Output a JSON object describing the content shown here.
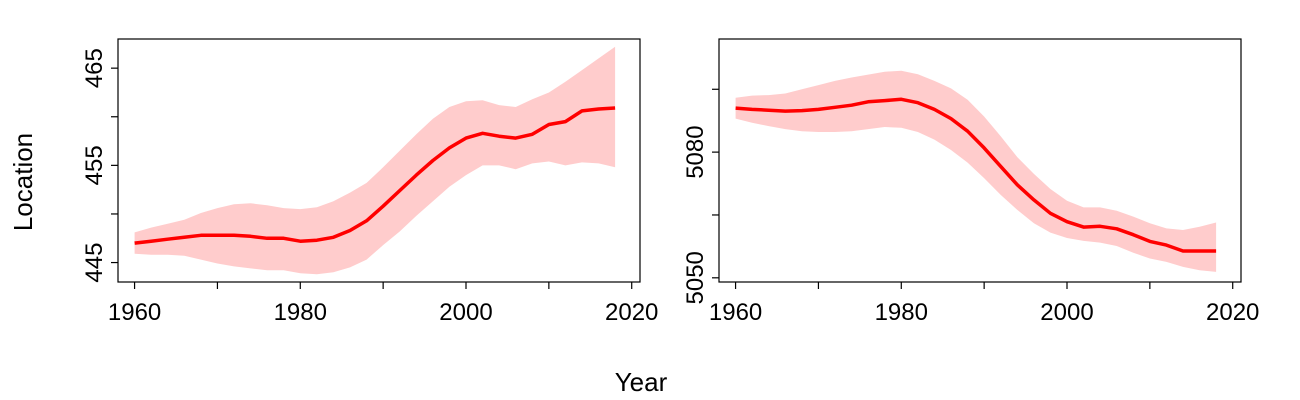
{
  "figure": {
    "ylabel": "Location",
    "xlabel": "Year"
  },
  "colors": {
    "line": "#ff0000",
    "band": "#ffcccc",
    "axis": "#000000"
  },
  "chart_data": [
    {
      "type": "line",
      "xlim": [
        1958,
        2021
      ],
      "ylim": [
        443,
        468
      ],
      "xticks": [
        1960,
        1970,
        1980,
        1990,
        2000,
        2010,
        2020
      ],
      "xtick_labels": [
        "1960",
        "",
        "1980",
        "",
        "2000",
        "",
        "2020"
      ],
      "yticks": [
        445,
        450,
        455,
        460,
        465
      ],
      "ytick_labels": [
        "445",
        "",
        "455",
        "",
        "465"
      ],
      "grid": false,
      "series": [
        {
          "x": [
            1960,
            1962,
            1964,
            1966,
            1968,
            1970,
            1972,
            1974,
            1976,
            1978,
            1980,
            1982,
            1984,
            1986,
            1988,
            1990,
            1992,
            1994,
            1996,
            1998,
            2000,
            2002,
            2004,
            2006,
            2008,
            2010,
            2012,
            2014,
            2016,
            2018
          ],
          "values": [
            447.0,
            447.2,
            447.4,
            447.6,
            447.8,
            447.8,
            447.8,
            447.7,
            447.5,
            447.5,
            447.2,
            447.3,
            447.6,
            448.3,
            449.3,
            450.8,
            452.4,
            454.0,
            455.5,
            456.8,
            457.8,
            458.3,
            458.0,
            457.8,
            458.2,
            459.2,
            459.5,
            460.6,
            460.8,
            460.9
          ],
          "lower": [
            445.9,
            445.8,
            445.8,
            445.7,
            445.3,
            444.9,
            444.6,
            444.4,
            444.2,
            444.2,
            443.9,
            443.8,
            444.0,
            444.5,
            445.3,
            446.8,
            448.2,
            449.8,
            451.3,
            452.8,
            454.0,
            455.0,
            455.0,
            454.6,
            455.2,
            455.4,
            455.0,
            455.3,
            455.2,
            454.8
          ],
          "upper": [
            448.1,
            448.6,
            449.0,
            449.4,
            450.1,
            450.6,
            451.0,
            451.1,
            450.9,
            450.6,
            450.5,
            450.7,
            451.3,
            452.2,
            453.2,
            454.8,
            456.5,
            458.2,
            459.8,
            461.0,
            461.6,
            461.7,
            461.2,
            461.0,
            461.8,
            462.5,
            463.6,
            464.8,
            466.0,
            467.2
          ]
        }
      ]
    },
    {
      "type": "line",
      "xlim": [
        1958,
        2021
      ],
      "ylim": [
        5049,
        5107
      ],
      "xticks": [
        1960,
        1970,
        1980,
        1990,
        2000,
        2010,
        2020
      ],
      "xtick_labels": [
        "1960",
        "",
        "1980",
        "",
        "2000",
        "",
        "2020"
      ],
      "yticks": [
        5050,
        5065,
        5080,
        5095
      ],
      "ytick_labels": [
        "5050",
        "",
        "5080",
        ""
      ],
      "grid": false,
      "series": [
        {
          "x": [
            1960,
            1962,
            1964,
            1966,
            1968,
            1970,
            1972,
            1974,
            1976,
            1978,
            1980,
            1982,
            1984,
            1986,
            1988,
            1990,
            1992,
            1994,
            1996,
            1998,
            2000,
            2002,
            2004,
            2006,
            2008,
            2010,
            2012,
            2014,
            2016,
            2018
          ],
          "values": [
            5090.5,
            5090.2,
            5090.0,
            5089.8,
            5089.9,
            5090.2,
            5090.7,
            5091.2,
            5092.0,
            5092.3,
            5092.6,
            5091.8,
            5090.2,
            5088.0,
            5085.0,
            5081.0,
            5076.6,
            5072.2,
            5068.6,
            5065.4,
            5063.4,
            5062.1,
            5062.3,
            5061.7,
            5060.3,
            5058.7,
            5057.8,
            5056.4,
            5056.4,
            5056.4
          ],
          "lower": [
            5088.0,
            5087.0,
            5086.2,
            5085.5,
            5085.0,
            5084.8,
            5084.8,
            5085.0,
            5085.5,
            5086.0,
            5085.8,
            5084.8,
            5083.0,
            5080.5,
            5077.5,
            5073.8,
            5069.8,
            5066.2,
            5063.0,
            5060.8,
            5059.5,
            5058.8,
            5058.4,
            5057.6,
            5056.0,
            5054.6,
            5053.8,
            5052.6,
            5051.8,
            5051.4
          ],
          "upper": [
            5093.0,
            5093.5,
            5093.6,
            5094.0,
            5095.0,
            5096.0,
            5097.0,
            5097.8,
            5098.5,
            5099.2,
            5099.4,
            5098.6,
            5097.0,
            5095.2,
            5092.5,
            5088.5,
            5083.8,
            5078.8,
            5074.8,
            5071.2,
            5068.4,
            5066.8,
            5066.8,
            5066.0,
            5064.6,
            5063.0,
            5061.8,
            5061.4,
            5062.2,
            5063.2
          ]
        }
      ]
    }
  ]
}
